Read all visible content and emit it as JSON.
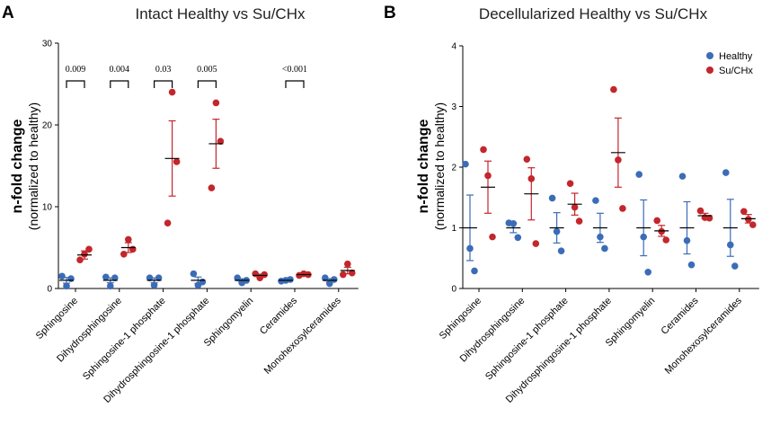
{
  "colors": {
    "healthy": "#3B6CB7",
    "su_chx": "#C3262B"
  },
  "legend": {
    "healthy": "Healthy",
    "su_chx": "Su/CHx"
  },
  "chart_data": [
    {
      "panel": "A",
      "type": "scatter",
      "title": "Intact Healthy vs Su/CHx",
      "ylabel": "n-fold change",
      "ylabel2": "(normalized to healthy)",
      "ylim": [
        0,
        30
      ],
      "yticks": [
        0,
        10,
        20,
        30
      ],
      "categories": [
        "Sphingosine",
        "Dihydrosphingosine",
        "Sphingosine-1 phosphate",
        "Dihydrosphingosine-1 phosphate",
        "Sphingomyelin",
        "Ceramides",
        "Monohexosylceramides"
      ],
      "p_values": [
        "0.009",
        "0.004",
        "0.03",
        "0.005",
        "",
        "<0.001",
        ""
      ],
      "series": [
        {
          "name": "Healthy",
          "points": [
            [
              1.5,
              0.3,
              1.2
            ],
            [
              1.4,
              0.3,
              1.3
            ],
            [
              1.3,
              0.4,
              1.3
            ],
            [
              1.8,
              0.4,
              0.8
            ],
            [
              1.3,
              0.7,
              1.0
            ],
            [
              0.9,
              1.0,
              1.1
            ],
            [
              1.3,
              0.6,
              1.1
            ]
          ],
          "means": [
            1.0,
            1.0,
            1.0,
            1.0,
            1.0,
            1.0,
            1.0
          ],
          "sem": [
            0.35,
            0.3,
            0.3,
            0.4,
            0.2,
            0.06,
            0.2
          ]
        },
        {
          "name": "Su/CHx",
          "points": [
            [
              3.5,
              4.2,
              4.8
            ],
            [
              4.2,
              6.0,
              4.8
            ],
            [
              8.0,
              24.0,
              15.5
            ],
            [
              12.3,
              22.7,
              18.0
            ],
            [
              1.8,
              1.3,
              1.7
            ],
            [
              1.6,
              1.8,
              1.7
            ],
            [
              1.7,
              3.0,
              1.9
            ]
          ],
          "means": [
            4.1,
            5.0,
            15.9,
            17.7,
            1.6,
            1.7,
            2.2
          ],
          "sem": [
            0.5,
            0.6,
            4.6,
            3.0,
            0.15,
            0.1,
            0.4
          ]
        }
      ]
    },
    {
      "panel": "B",
      "type": "scatter",
      "title": "Decellularized Healthy vs Su/CHx",
      "ylabel": "n-fold change",
      "ylabel2": "(normalized to healthy)",
      "ylim": [
        0,
        4
      ],
      "yticks": [
        0,
        1,
        2,
        3,
        4
      ],
      "categories": [
        "Sphingosine",
        "Dihydrosphingosine",
        "Sphingosine-1 phosphate",
        "Dihydrosphingosine-1 phosphate",
        "Sphingomyelin",
        "Ceramides",
        "Monohexosylceramides"
      ],
      "series": [
        {
          "name": "Healthy",
          "points": [
            [
              2.05,
              0.66,
              0.29
            ],
            [
              1.08,
              1.07,
              0.84
            ],
            [
              1.49,
              0.94,
              0.62
            ],
            [
              1.45,
              0.85,
              0.66
            ],
            [
              1.88,
              0.85,
              0.27
            ],
            [
              1.85,
              0.79,
              0.39
            ],
            [
              1.91,
              0.72,
              0.37
            ]
          ],
          "means": [
            1.0,
            1.0,
            1.0,
            1.0,
            1.0,
            1.0,
            1.0
          ],
          "sem": [
            0.54,
            0.08,
            0.25,
            0.24,
            0.46,
            0.43,
            0.47
          ]
        },
        {
          "name": "Su/CHx",
          "points": [
            [
              2.29,
              1.86,
              0.85
            ],
            [
              2.13,
              1.81,
              0.74
            ],
            [
              1.73,
              1.34,
              1.11
            ],
            [
              3.28,
              2.12,
              1.32
            ],
            [
              1.12,
              0.94,
              0.8
            ],
            [
              1.28,
              1.17,
              1.16
            ],
            [
              1.27,
              1.14,
              1.05
            ]
          ],
          "means": [
            1.67,
            1.56,
            1.39,
            2.24,
            0.95,
            1.2,
            1.15
          ],
          "sem": [
            0.43,
            0.43,
            0.18,
            0.57,
            0.09,
            0.04,
            0.07
          ]
        }
      ]
    }
  ]
}
